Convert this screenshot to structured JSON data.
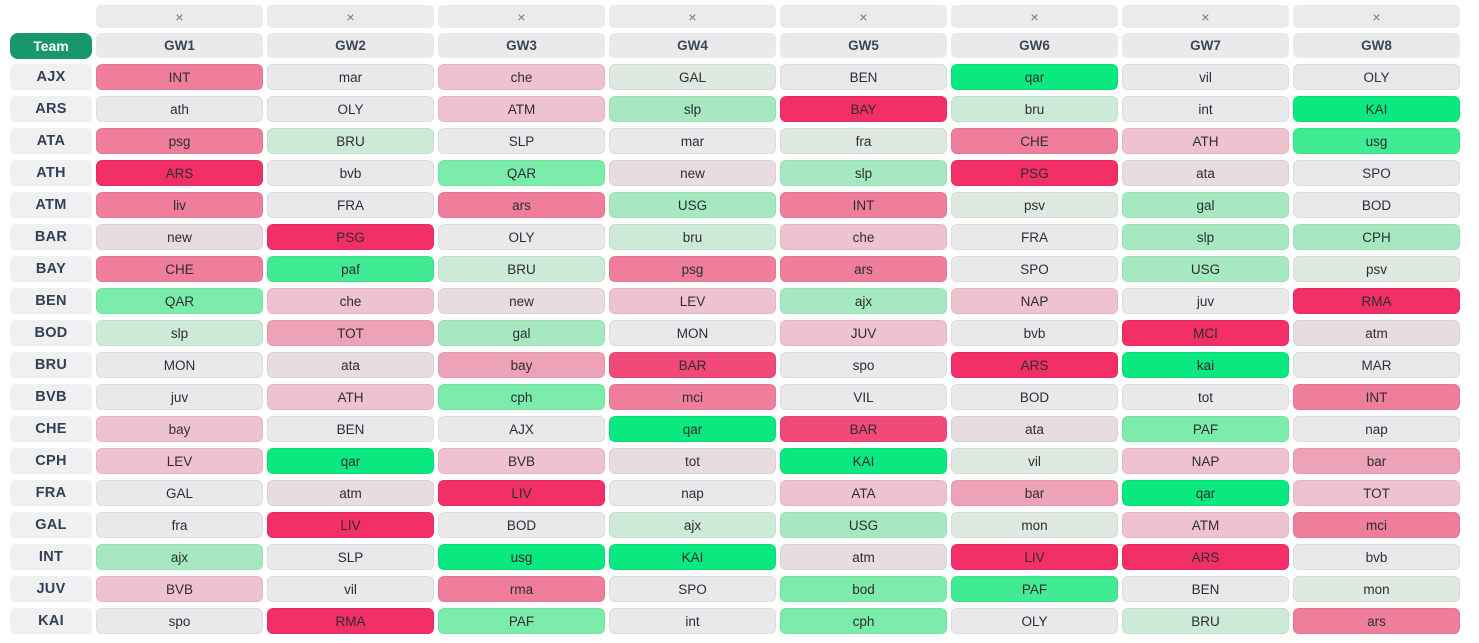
{
  "table": {
    "team_header_label": "Team",
    "close_icon": "×",
    "gameweeks": [
      "GW1",
      "GW2",
      "GW3",
      "GW4",
      "GW5",
      "GW6",
      "GW7",
      "GW8"
    ],
    "teams": [
      {
        "code": "AJX",
        "fixtures": [
          [
            "INT",
            "r3"
          ],
          [
            "mar",
            "n"
          ],
          [
            "che",
            "r5"
          ],
          [
            "GAL",
            "g6"
          ],
          [
            "BEN",
            "n"
          ],
          [
            "qar",
            "g1"
          ],
          [
            "vil",
            "n"
          ],
          [
            "OLY",
            "n"
          ]
        ]
      },
      {
        "code": "ARS",
        "fixtures": [
          [
            "ath",
            "n"
          ],
          [
            "OLY",
            "n"
          ],
          [
            "ATM",
            "r5"
          ],
          [
            "slp",
            "g4"
          ],
          [
            "BAY",
            "r1"
          ],
          [
            "bru",
            "g5"
          ],
          [
            "int",
            "n"
          ],
          [
            "KAI",
            "g1"
          ]
        ]
      },
      {
        "code": "ATA",
        "fixtures": [
          [
            "psg",
            "r3"
          ],
          [
            "BRU",
            "g5"
          ],
          [
            "SLP",
            "n"
          ],
          [
            "mar",
            "n"
          ],
          [
            "fra",
            "g6"
          ],
          [
            "CHE",
            "r3"
          ],
          [
            "ATH",
            "r5"
          ],
          [
            "usg",
            "g2"
          ]
        ]
      },
      {
        "code": "ATH",
        "fixtures": [
          [
            "ARS",
            "r1"
          ],
          [
            "bvb",
            "n"
          ],
          [
            "QAR",
            "g3"
          ],
          [
            "new",
            "r6"
          ],
          [
            "slp",
            "g4"
          ],
          [
            "PSG",
            "r1"
          ],
          [
            "ata",
            "r6"
          ],
          [
            "SPO",
            "n"
          ]
        ]
      },
      {
        "code": "ATM",
        "fixtures": [
          [
            "liv",
            "r3"
          ],
          [
            "FRA",
            "n"
          ],
          [
            "ars",
            "r3"
          ],
          [
            "USG",
            "g4"
          ],
          [
            "INT",
            "r3"
          ],
          [
            "psv",
            "g6"
          ],
          [
            "gal",
            "g4"
          ],
          [
            "BOD",
            "n"
          ]
        ]
      },
      {
        "code": "BAR",
        "fixtures": [
          [
            "new",
            "r6"
          ],
          [
            "PSG",
            "r1"
          ],
          [
            "OLY",
            "n"
          ],
          [
            "bru",
            "g5"
          ],
          [
            "che",
            "r5"
          ],
          [
            "FRA",
            "n"
          ],
          [
            "slp",
            "g4"
          ],
          [
            "CPH",
            "g4"
          ]
        ]
      },
      {
        "code": "BAY",
        "fixtures": [
          [
            "CHE",
            "r3"
          ],
          [
            "paf",
            "g2"
          ],
          [
            "BRU",
            "g5"
          ],
          [
            "psg",
            "r3"
          ],
          [
            "ars",
            "r3"
          ],
          [
            "SPO",
            "n"
          ],
          [
            "USG",
            "g4"
          ],
          [
            "psv",
            "g6"
          ]
        ]
      },
      {
        "code": "BEN",
        "fixtures": [
          [
            "QAR",
            "g3"
          ],
          [
            "che",
            "r5"
          ],
          [
            "new",
            "r6"
          ],
          [
            "LEV",
            "r5"
          ],
          [
            "ajx",
            "g4"
          ],
          [
            "NAP",
            "r5"
          ],
          [
            "juv",
            "n"
          ],
          [
            "RMA",
            "r1"
          ]
        ]
      },
      {
        "code": "BOD",
        "fixtures": [
          [
            "slp",
            "g5"
          ],
          [
            "TOT",
            "r4"
          ],
          [
            "gal",
            "g4"
          ],
          [
            "MON",
            "n"
          ],
          [
            "JUV",
            "r5"
          ],
          [
            "bvb",
            "n"
          ],
          [
            "MCI",
            "r1"
          ],
          [
            "atm",
            "r6"
          ]
        ]
      },
      {
        "code": "BRU",
        "fixtures": [
          [
            "MON",
            "n"
          ],
          [
            "ata",
            "r6"
          ],
          [
            "bay",
            "r4"
          ],
          [
            "BAR",
            "r2"
          ],
          [
            "spo",
            "n"
          ],
          [
            "ARS",
            "r1"
          ],
          [
            "kai",
            "g1"
          ],
          [
            "MAR",
            "n"
          ]
        ]
      },
      {
        "code": "BVB",
        "fixtures": [
          [
            "juv",
            "n"
          ],
          [
            "ATH",
            "r5"
          ],
          [
            "cph",
            "g3"
          ],
          [
            "mci",
            "r3"
          ],
          [
            "VIL",
            "n"
          ],
          [
            "BOD",
            "n"
          ],
          [
            "tot",
            "n"
          ],
          [
            "INT",
            "r3"
          ]
        ]
      },
      {
        "code": "CHE",
        "fixtures": [
          [
            "bay",
            "r5"
          ],
          [
            "BEN",
            "n"
          ],
          [
            "AJX",
            "n"
          ],
          [
            "qar",
            "g1"
          ],
          [
            "BAR",
            "r2"
          ],
          [
            "ata",
            "r6"
          ],
          [
            "PAF",
            "g3"
          ],
          [
            "nap",
            "n"
          ]
        ]
      },
      {
        "code": "CPH",
        "fixtures": [
          [
            "LEV",
            "r5"
          ],
          [
            "qar",
            "g1"
          ],
          [
            "BVB",
            "r5"
          ],
          [
            "tot",
            "r6"
          ],
          [
            "KAI",
            "g1"
          ],
          [
            "vil",
            "g6"
          ],
          [
            "NAP",
            "r5"
          ],
          [
            "bar",
            "r4"
          ]
        ]
      },
      {
        "code": "FRA",
        "fixtures": [
          [
            "GAL",
            "n"
          ],
          [
            "atm",
            "r6"
          ],
          [
            "LIV",
            "r1"
          ],
          [
            "nap",
            "n"
          ],
          [
            "ATA",
            "r5"
          ],
          [
            "bar",
            "r4"
          ],
          [
            "qar",
            "g1"
          ],
          [
            "TOT",
            "r5"
          ]
        ]
      },
      {
        "code": "GAL",
        "fixtures": [
          [
            "fra",
            "n"
          ],
          [
            "LIV",
            "r1"
          ],
          [
            "BOD",
            "n"
          ],
          [
            "ajx",
            "g5"
          ],
          [
            "USG",
            "g4"
          ],
          [
            "mon",
            "g6"
          ],
          [
            "ATM",
            "r5"
          ],
          [
            "mci",
            "r3"
          ]
        ]
      },
      {
        "code": "INT",
        "fixtures": [
          [
            "ajx",
            "g4"
          ],
          [
            "SLP",
            "n"
          ],
          [
            "usg",
            "g1"
          ],
          [
            "KAI",
            "g1"
          ],
          [
            "atm",
            "r6"
          ],
          [
            "LIV",
            "r1"
          ],
          [
            "ARS",
            "r1"
          ],
          [
            "bvb",
            "n"
          ]
        ]
      },
      {
        "code": "JUV",
        "fixtures": [
          [
            "BVB",
            "r5"
          ],
          [
            "vil",
            "n"
          ],
          [
            "rma",
            "r3"
          ],
          [
            "SPO",
            "n"
          ],
          [
            "bod",
            "g3"
          ],
          [
            "PAF",
            "g2"
          ],
          [
            "BEN",
            "n"
          ],
          [
            "mon",
            "g6"
          ]
        ]
      },
      {
        "code": "KAI",
        "fixtures": [
          [
            "spo",
            "n"
          ],
          [
            "RMA",
            "r1"
          ],
          [
            "PAF",
            "g3"
          ],
          [
            "int",
            "n"
          ],
          [
            "cph",
            "g3"
          ],
          [
            "OLY",
            "n"
          ],
          [
            "BRU",
            "g5"
          ],
          [
            "ars",
            "r3"
          ]
        ]
      }
    ]
  },
  "palette": {
    "g1": "#0ae97f",
    "g2": "#40eb93",
    "g3": "#7cecaa",
    "g4": "#a6e9c1",
    "g5": "#cdead8",
    "g6": "#dfe9e2",
    "n": "#e9e8ea",
    "r6": "#e9dce0",
    "r5": "#efc2cf",
    "r4": "#eda2b8",
    "r3": "#ee7e9b",
    "r2": "#f1497a",
    "r1": "#f22f66",
    "team_badge_bg": "#18986a",
    "header_bg": "#eaeaec",
    "team_cell_bg": "#f0eff1"
  }
}
